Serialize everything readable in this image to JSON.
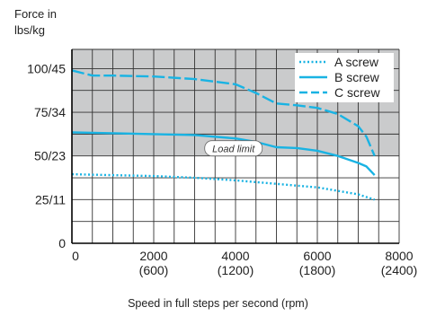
{
  "chart_data": {
    "type": "line",
    "ylabel": [
      "Force in",
      "lbs/kg"
    ],
    "xlabel": "Speed in full steps per second (rpm)",
    "xlim": [
      0,
      8000
    ],
    "ylim": [
      0,
      111
    ],
    "x_ticks": [
      {
        "value": 0,
        "labels": [
          "0"
        ]
      },
      {
        "value": 2000,
        "labels": [
          "2000",
          "(600)"
        ]
      },
      {
        "value": 4000,
        "labels": [
          "4000",
          "(1200)"
        ]
      },
      {
        "value": 6000,
        "labels": [
          "6000",
          "(1800)"
        ]
      },
      {
        "value": 8000,
        "labels": [
          "8000",
          "(2400)"
        ]
      }
    ],
    "y_ticks": [
      {
        "value": 0,
        "label": "0"
      },
      {
        "value": 25,
        "label": "25/11"
      },
      {
        "value": 50,
        "label": "50/23"
      },
      {
        "value": 75,
        "label": "75/34"
      },
      {
        "value": 100,
        "label": "100/45"
      }
    ],
    "load_limit": {
      "label": "Load limit",
      "value": 50,
      "fill_color": "#cacbcc"
    },
    "grid": true,
    "legend_position": "top-right",
    "series": [
      {
        "name": "A screw",
        "style": "dotted",
        "color": "#19b3e3",
        "x": [
          0,
          1000,
          2000,
          3000,
          4000,
          5000,
          5500,
          6000,
          6500,
          7000,
          7400
        ],
        "y": [
          39.5,
          39,
          38.5,
          37.5,
          36,
          34,
          33,
          32,
          30,
          28,
          25
        ]
      },
      {
        "name": "B screw",
        "style": "solid",
        "color": "#19b3e3",
        "x": [
          0,
          1000,
          2000,
          3000,
          4000,
          4500,
          5000,
          5500,
          6000,
          6500,
          7000,
          7200,
          7400
        ],
        "y": [
          63.5,
          63,
          62.5,
          62,
          60,
          58,
          55,
          54.5,
          53,
          50,
          46,
          44,
          39
        ]
      },
      {
        "name": "C screw",
        "style": "dashed",
        "color": "#19b3e3",
        "x": [
          0,
          500,
          1000,
          2000,
          3000,
          4000,
          4500,
          5000,
          5500,
          6000,
          6500,
          7000,
          7200,
          7400
        ],
        "y": [
          99,
          96,
          96,
          95.5,
          94,
          91,
          86,
          80,
          79,
          77.5,
          74,
          67,
          61,
          50
        ]
      }
    ]
  }
}
